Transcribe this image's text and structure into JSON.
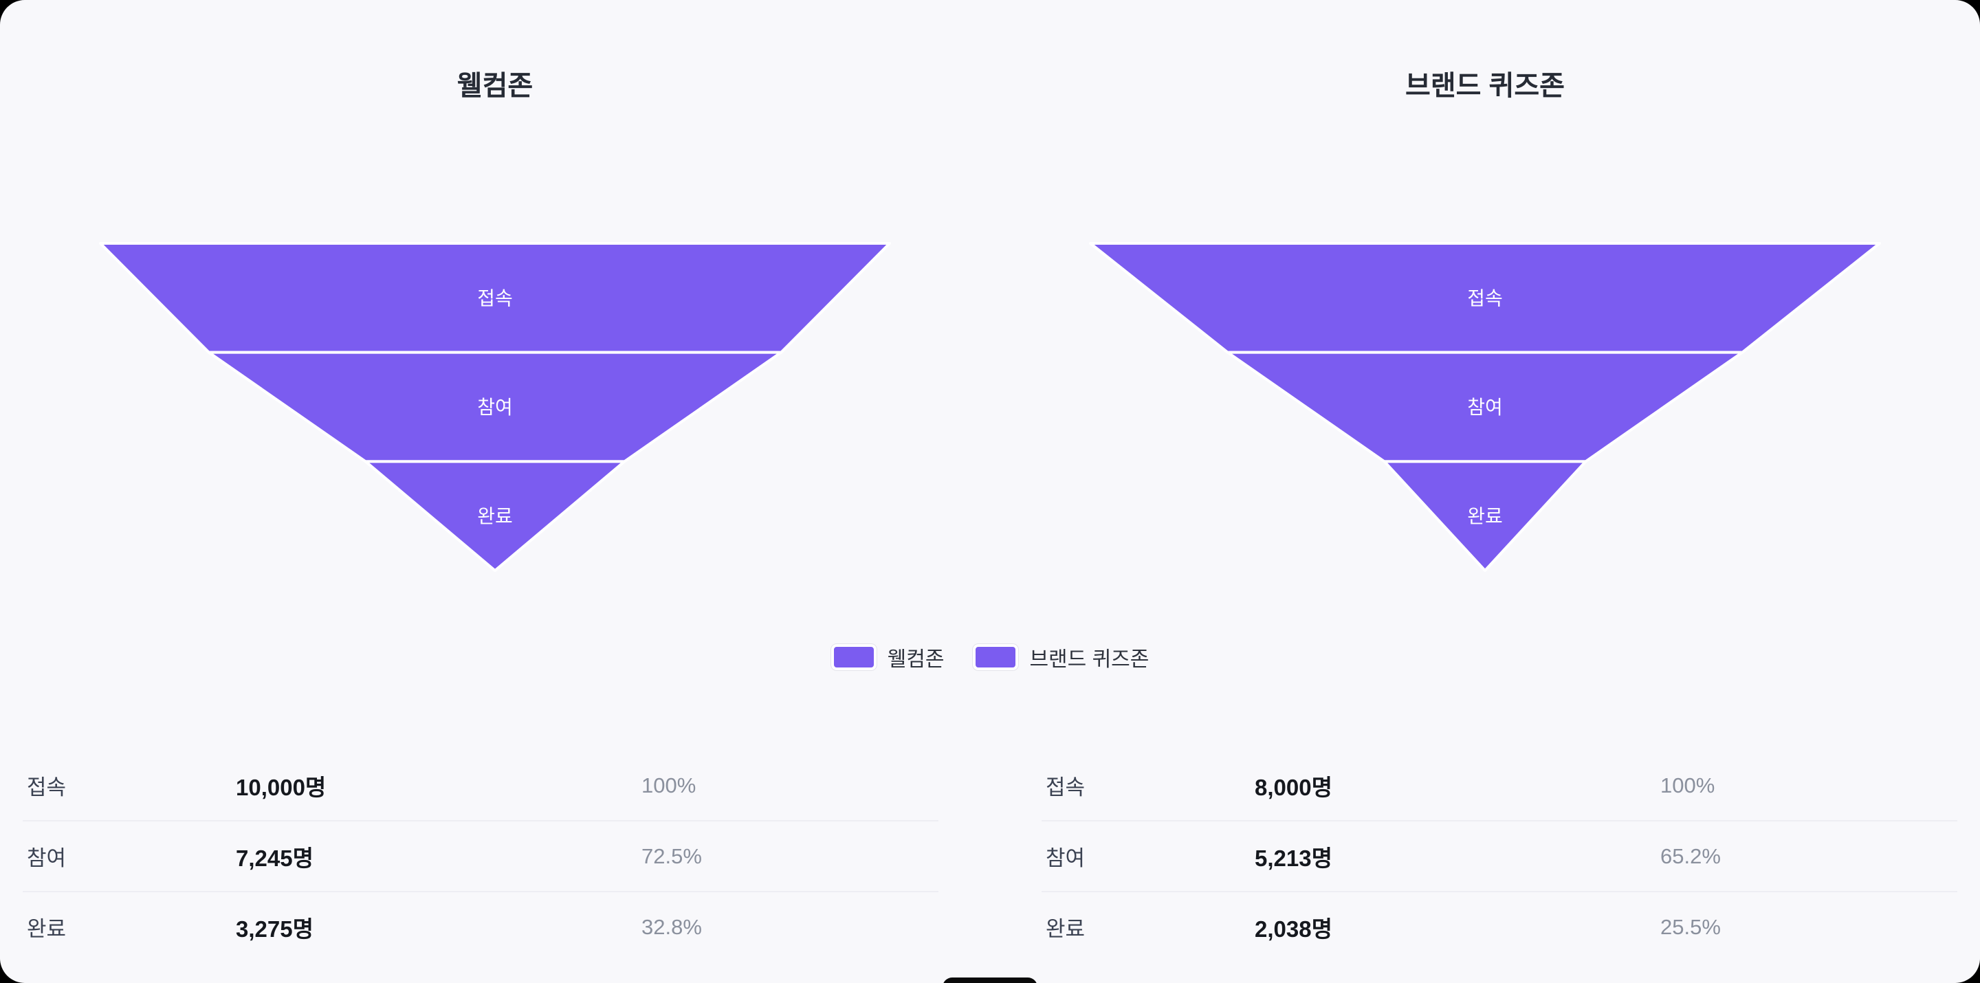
{
  "colors": {
    "accent": "#7B5CF0",
    "background": "#F8F8FB",
    "outer": "#000000",
    "title": "#262B35",
    "table_label": "#3B4252",
    "table_count": "#15181E",
    "table_percent": "#8A909D",
    "divider": "#EEEEF3",
    "funnel_label": "#FFFFFF",
    "pill": "#0A0A0A"
  },
  "legend": {
    "items": [
      {
        "label": "웰컴존"
      },
      {
        "label": "브랜드 퀴즈존"
      }
    ]
  },
  "chart_data": [
    {
      "type": "funnel",
      "title": "웰컴존",
      "categories": [
        "접속",
        "참여",
        "완료"
      ],
      "values": [
        10000,
        7245,
        3275
      ],
      "percents": [
        100,
        72.5,
        32.8
      ],
      "unit": "명",
      "rows": [
        {
          "label": "접속",
          "count": "10,000명",
          "percent": "100%"
        },
        {
          "label": "참여",
          "count": "7,245명",
          "percent": "72.5%"
        },
        {
          "label": "완료",
          "count": "3,275명",
          "percent": "32.8%"
        }
      ]
    },
    {
      "type": "funnel",
      "title": "브랜드 퀴즈존",
      "categories": [
        "접속",
        "참여",
        "완료"
      ],
      "values": [
        8000,
        5213,
        2038
      ],
      "percents": [
        100,
        65.2,
        25.5
      ],
      "unit": "명",
      "rows": [
        {
          "label": "접속",
          "count": "8,000명",
          "percent": "100%"
        },
        {
          "label": "참여",
          "count": "5,213명",
          "percent": "65.2%"
        },
        {
          "label": "완료",
          "count": "2,038명",
          "percent": "25.5%"
        }
      ]
    }
  ]
}
